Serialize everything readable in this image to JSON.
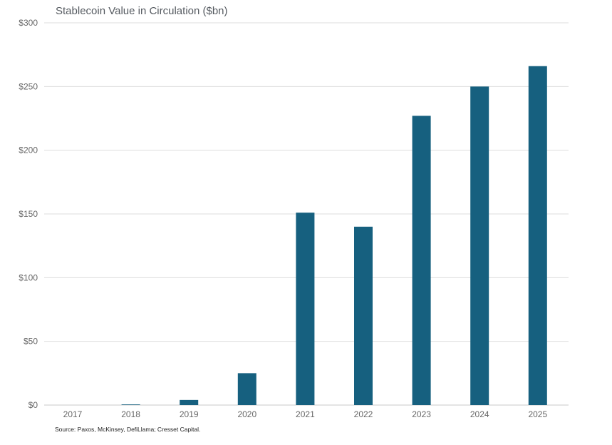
{
  "chart_data": {
    "type": "bar",
    "title": "Stablecoin Value in Circulation ($bn)",
    "categories": [
      "2017",
      "2018",
      "2019",
      "2020",
      "2021",
      "2022",
      "2023",
      "2024",
      "2025"
    ],
    "values": [
      0,
      0.5,
      4,
      25,
      151,
      140,
      227,
      250,
      266
    ],
    "ylim": [
      0,
      300
    ],
    "yticks": [
      0,
      50,
      100,
      150,
      200,
      250,
      300
    ],
    "ytick_labels": [
      "$0",
      "$50",
      "$100",
      "$150",
      "$200",
      "$250",
      "$300"
    ],
    "grid": true,
    "bar_color": "#16607f",
    "grid_color": "#dddddd",
    "source": "Source: Paxos, McKinsey, DefiLlama; Cresset Capital."
  }
}
